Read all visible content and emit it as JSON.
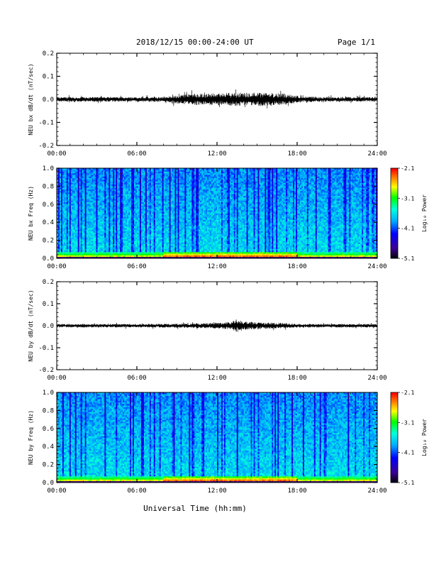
{
  "header": {
    "title": "2018/12/15  00:00-24:00 UT",
    "page": "Page 1/1"
  },
  "figure_xlabel": "Universal Time (hh:mm)",
  "chart_data": [
    {
      "type": "line",
      "ylabel": "NEU bx dB/dt (nT/sec)",
      "xlim": [
        0,
        24
      ],
      "ylim": [
        -0.2,
        0.2
      ],
      "xtick_labels": [
        "00:00",
        "06:00",
        "12:00",
        "18:00",
        "24:00"
      ],
      "yticks": [
        -0.2,
        -0.1,
        0.0,
        0.1,
        0.2
      ],
      "ytick_labels": [
        "-0.2",
        "-0.1",
        "0.0",
        "0.1",
        "0.2"
      ],
      "line_color": "#000000",
      "envelope": {
        "hours": [
          0,
          2,
          4,
          6,
          8,
          9,
          10,
          11,
          12,
          13,
          14,
          15,
          16,
          17,
          18,
          19,
          20,
          22,
          24
        ],
        "amplitude": [
          0.01,
          0.01,
          0.01,
          0.01,
          0.011,
          0.018,
          0.024,
          0.026,
          0.026,
          0.028,
          0.03,
          0.03,
          0.028,
          0.026,
          0.016,
          0.012,
          0.011,
          0.01,
          0.01
        ]
      }
    },
    {
      "type": "heatmap",
      "ylabel": "NEU bx Freq (Hz)",
      "xlim": [
        0,
        24
      ],
      "ylim": [
        0,
        1.0
      ],
      "xtick_labels": [
        "00:00",
        "06:00",
        "12:00",
        "18:00",
        "24:00"
      ],
      "yticks": [
        0.0,
        0.2,
        0.4,
        0.6,
        0.8,
        1.0
      ],
      "ytick_labels": [
        "0.0",
        "0.2",
        "0.4",
        "0.6",
        "0.8",
        "1.0"
      ],
      "colorbar": {
        "label": "Log₁₀ Power",
        "range": [
          -5.1,
          -2.1
        ],
        "ticks": [
          -2.1,
          -3.1,
          -4.1,
          -5.1
        ],
        "tick_labels": [
          "-2.1",
          "-3.1",
          "-4.1",
          "-5.1"
        ]
      },
      "low_freq_band_hours": [
        8,
        18
      ]
    },
    {
      "type": "line",
      "ylabel": "NEU by dB/dt (nT/sec)",
      "xlim": [
        0,
        24
      ],
      "ylim": [
        -0.2,
        0.2
      ],
      "xtick_labels": [
        "00:00",
        "06:00",
        "12:00",
        "18:00",
        "24:00"
      ],
      "yticks": [
        -0.2,
        -0.1,
        0.0,
        0.1,
        0.2
      ],
      "ytick_labels": [
        "-0.2",
        "-0.1",
        "0.0",
        "0.1",
        "0.2"
      ],
      "line_color": "#000000",
      "envelope": {
        "hours": [
          0,
          2,
          4,
          6,
          8,
          10,
          11,
          12,
          13,
          13.5,
          14,
          15,
          16,
          17,
          18,
          20,
          22,
          24
        ],
        "amplitude": [
          0.008,
          0.008,
          0.008,
          0.008,
          0.009,
          0.01,
          0.012,
          0.014,
          0.018,
          0.03,
          0.02,
          0.016,
          0.014,
          0.012,
          0.009,
          0.008,
          0.008,
          0.008
        ]
      }
    },
    {
      "type": "heatmap",
      "ylabel": "NEU by Freq (Hz)",
      "xlim": [
        0,
        24
      ],
      "ylim": [
        0,
        1.0
      ],
      "xtick_labels": [
        "00:00",
        "06:00",
        "12:00",
        "18:00",
        "24:00"
      ],
      "yticks": [
        0.0,
        0.2,
        0.4,
        0.6,
        0.8,
        1.0
      ],
      "ytick_labels": [
        "0.0",
        "0.2",
        "0.4",
        "0.6",
        "0.8",
        "1.0"
      ],
      "colorbar": {
        "label": "Log₁₀ Power",
        "range": [
          -5.1,
          -2.1
        ],
        "ticks": [
          -2.1,
          -3.1,
          -4.1,
          -5.1
        ],
        "tick_labels": [
          "-2.1",
          "-3.1",
          "-4.1",
          "-5.1"
        ]
      },
      "low_freq_band_hours": [
        8,
        18
      ]
    }
  ]
}
